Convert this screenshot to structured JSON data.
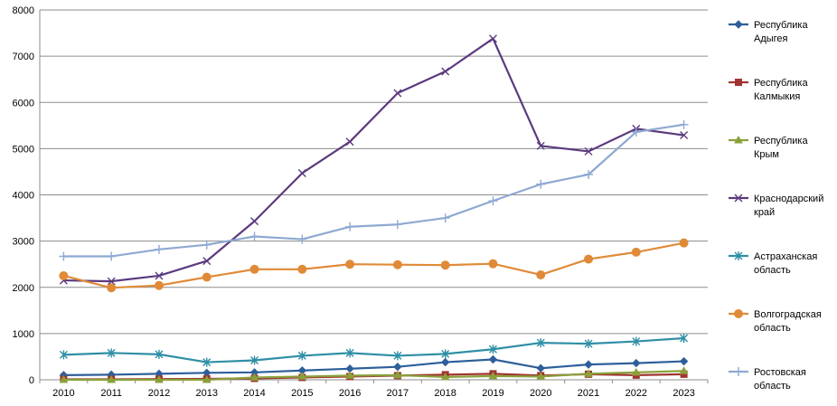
{
  "chart_data": {
    "type": "line",
    "title": "",
    "xlabel": "",
    "ylabel": "",
    "ylim": [
      0,
      8000
    ],
    "yticks": [
      0,
      1000,
      2000,
      3000,
      4000,
      5000,
      6000,
      7000,
      8000
    ],
    "grid": true,
    "legend_position": "right",
    "categories": [
      "2010",
      "2011",
      "2012",
      "2013",
      "2014",
      "2015",
      "2016",
      "2017",
      "2018",
      "2019",
      "2020",
      "2021",
      "2022",
      "2023"
    ],
    "series": [
      {
        "name_lines": [
          "Республика",
          "Адыгея"
        ],
        "color": "#2e5f9a",
        "marker": "diamond",
        "values": [
          100,
          110,
          130,
          150,
          160,
          200,
          240,
          280,
          380,
          440,
          250,
          330,
          360,
          400
        ]
      },
      {
        "name_lines": [
          "Республика",
          "Калмыкия"
        ],
        "color": "#a0342f",
        "marker": "square",
        "values": [
          10,
          10,
          15,
          20,
          30,
          50,
          70,
          90,
          110,
          130,
          90,
          120,
          100,
          120
        ]
      },
      {
        "name_lines": [
          "Республика",
          "Крым"
        ],
        "color": "#8aa13b",
        "marker": "triangle",
        "values": [
          0,
          0,
          0,
          0,
          50,
          70,
          90,
          100,
          60,
          80,
          70,
          130,
          160,
          190
        ]
      },
      {
        "name_lines": [
          "Краснодарский",
          "край"
        ],
        "color": "#5b3a7e",
        "marker": "x",
        "values": [
          2150,
          2130,
          2250,
          2570,
          3430,
          4470,
          5150,
          6200,
          6670,
          7380,
          5060,
          4940,
          5430,
          5290
        ]
      },
      {
        "name_lines": [
          "Астраханская",
          "область"
        ],
        "color": "#2f8fa6",
        "marker": "star",
        "values": [
          540,
          580,
          550,
          380,
          420,
          520,
          580,
          520,
          560,
          660,
          800,
          780,
          830,
          900
        ]
      },
      {
        "name_lines": [
          "Волгоградская",
          "область"
        ],
        "color": "#e08a38",
        "marker": "circle",
        "values": [
          2250,
          1990,
          2040,
          2220,
          2390,
          2390,
          2500,
          2490,
          2480,
          2510,
          2270,
          2610,
          2760,
          2960
        ]
      },
      {
        "name_lines": [
          "Ростовская",
          "область"
        ],
        "color": "#8ea9d2",
        "marker": "plus",
        "values": [
          2670,
          2670,
          2820,
          2920,
          3100,
          3040,
          3310,
          3360,
          3500,
          3870,
          4230,
          4440,
          5360,
          5520
        ]
      }
    ]
  }
}
